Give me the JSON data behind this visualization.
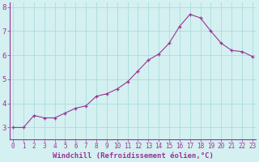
{
  "x": [
    0,
    1,
    2,
    3,
    4,
    5,
    6,
    7,
    8,
    9,
    10,
    11,
    12,
    13,
    14,
    15,
    16,
    17,
    18,
    19,
    20,
    21,
    22,
    23
  ],
  "y": [
    3.0,
    3.0,
    3.5,
    3.4,
    3.4,
    3.6,
    3.8,
    3.9,
    4.3,
    4.4,
    4.6,
    4.9,
    5.35,
    5.8,
    6.05,
    6.5,
    7.2,
    7.7,
    7.55,
    7.0,
    6.5,
    6.2,
    6.15,
    5.95
  ],
  "line_color": "#993399",
  "marker": "+",
  "background_color": "#d4f0f0",
  "grid_color": "#aadddd",
  "xlabel": "Windchill (Refroidissement éolien,°C)",
  "xlabel_color": "#993399",
  "ylabel_ticks": [
    3,
    4,
    5,
    6,
    7,
    8
  ],
  "xtick_labels": [
    "0",
    "1",
    "2",
    "3",
    "4",
    "5",
    "6",
    "7",
    "8",
    "9",
    "10",
    "11",
    "12",
    "13",
    "14",
    "15",
    "16",
    "17",
    "18",
    "19",
    "20",
    "21",
    "22",
    "23"
  ],
  "ylim": [
    2.5,
    8.2
  ],
  "xlim": [
    -0.3,
    23.3
  ],
  "tick_color": "#993399",
  "font_color": "#993399",
  "tick_font_size": 5.5,
  "xlabel_font_size": 6.5,
  "ylabel_font_size": 6.5
}
